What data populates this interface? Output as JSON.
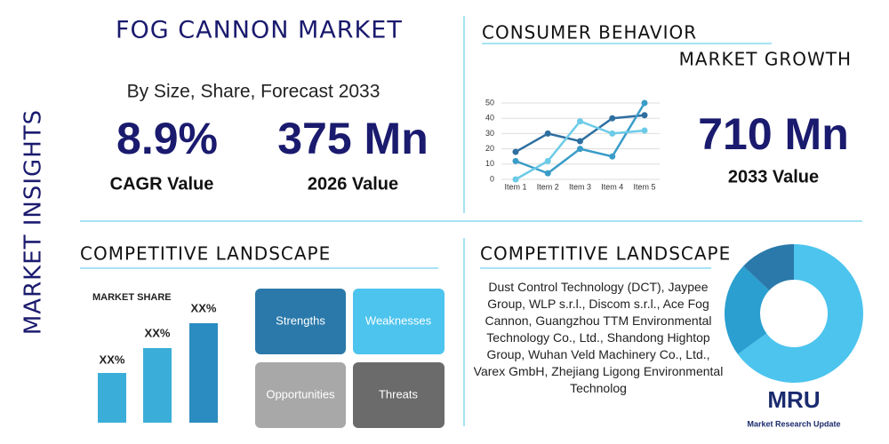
{
  "header": {
    "side_label": "MARKET INSIGHTS",
    "title": "FOG CANNON MARKET",
    "subtitle": "By Size, Share, Forecast 2033"
  },
  "stats": [
    {
      "value": "8.9%",
      "label": "CAGR Value"
    },
    {
      "value": "375 Mn",
      "label": "2026 Value"
    },
    {
      "value": "710 Mn",
      "label": "2033 Value"
    }
  ],
  "consumer": {
    "title": "CONSUMER BEHAVIOR",
    "subtitle": "MARKET GROWTH"
  },
  "chart_data": {
    "type": "line",
    "categories": [
      "Item 1",
      "Item 2",
      "Item 3",
      "Item 4",
      "Item 5"
    ],
    "series": [
      {
        "color": "#2e6fa0",
        "values": [
          18,
          30,
          25,
          40,
          42
        ]
      },
      {
        "color": "#3a9cc8",
        "values": [
          12,
          4,
          20,
          15,
          50
        ]
      },
      {
        "color": "#6ccbe8",
        "values": [
          0,
          12,
          38,
          30,
          32
        ]
      }
    ],
    "ylim": [
      0,
      50
    ],
    "yticks": [
      0,
      10,
      20,
      30,
      40,
      50
    ],
    "grid": true
  },
  "share": {
    "title": "COMPETITIVE LANDSCAPE",
    "chart_title": "MARKET SHARE",
    "bar_labels": [
      "XX%",
      "XX%",
      "XX%"
    ]
  },
  "swot": [
    "Strengths",
    "Weaknesses",
    "Opportunities",
    "Threats"
  ],
  "competitors": {
    "title": "COMPETITIVE LANDSCAPE",
    "text": "Dust Control Technology (DCT), Jaypee Group, WLP s.r.l., Discom s.r.l., Ace Fog Cannon, Guangzhou TTM Environmental Technology Co., Ltd., Shandong Hightop Group, Wuhan Veld Machinery Co., Ltd., Varex GmbH, Zhejiang Ligong Environmental Technolog"
  },
  "donut": {
    "type": "pie",
    "values": [
      65,
      22,
      13
    ],
    "colors": [
      "#4cc4ee",
      "#2a9fd0",
      "#2a79aa"
    ]
  },
  "logo": {
    "mark": "MRU",
    "name": "Market Research Update"
  }
}
